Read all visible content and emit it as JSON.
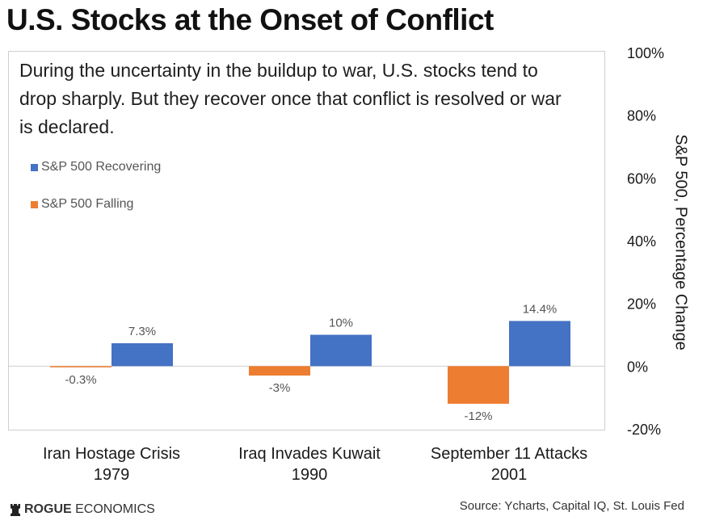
{
  "title": "U.S. Stocks at the Onset of Conflict",
  "description": "During the uncertainty in the buildup to war, U.S. stocks tend to drop sharply. But they recover once that conflict is resolved or war is declared.",
  "source": "Source: Ycharts, Capital IQ, St. Louis Fed",
  "brand": {
    "bold": "ROGUE",
    "rest": " ECONOMICS",
    "icon": "rook-icon"
  },
  "colors": {
    "recovering": "#4472c4",
    "falling": "#ed7d31"
  },
  "chart_data": {
    "type": "bar",
    "categories": [
      {
        "line1": "Iran Hostage Crisis",
        "line2": "1979"
      },
      {
        "line1": "Iraq Invades Kuwait",
        "line2": "1990"
      },
      {
        "line1": "September 11 Attacks",
        "line2": "2001"
      }
    ],
    "series": [
      {
        "name": "S&P 500 Falling",
        "values": [
          -0.3,
          -3,
          -12
        ],
        "labels": [
          "-0.3%",
          "-3%",
          "-12%"
        ],
        "color": "#ed7d31"
      },
      {
        "name": "S&P 500 Recovering",
        "values": [
          7.3,
          10,
          14.4
        ],
        "labels": [
          "7.3%",
          "10%",
          "14.4%"
        ],
        "color": "#4472c4"
      }
    ],
    "ylabel": "S&P 500, Percentage Change",
    "ylim": [
      -20,
      100
    ],
    "yticks": [
      100,
      80,
      60,
      40,
      20,
      0,
      -20
    ],
    "ytick_labels": [
      "100%",
      "80%",
      "60%",
      "40%",
      "20%",
      "0%",
      "-20%"
    ],
    "y_axis_side": "right",
    "legend_position": "top-left",
    "grid": false
  }
}
